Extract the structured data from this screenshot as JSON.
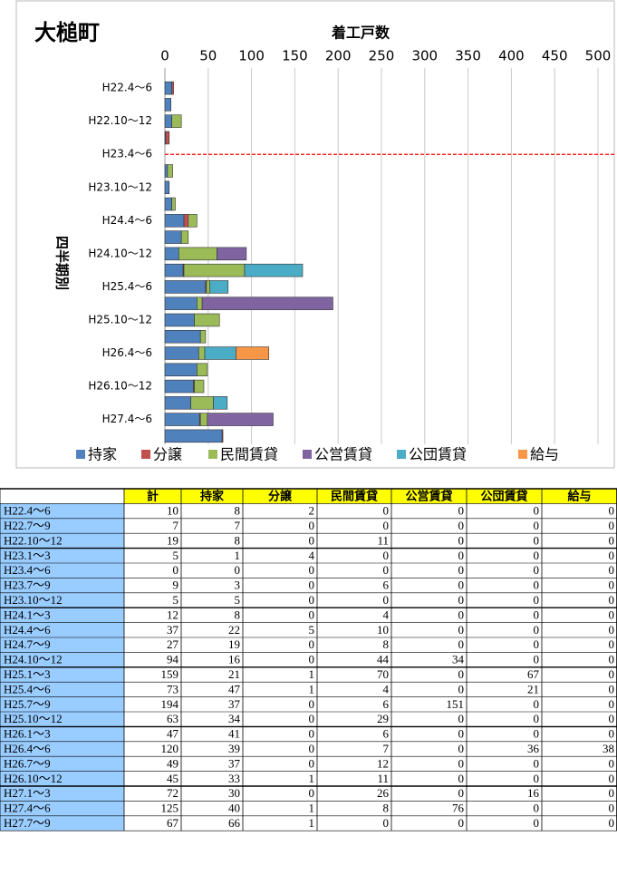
{
  "chart_data": {
    "type": "hbar-stacked",
    "title": "大槌町",
    "xlabel": "着工戸数",
    "ylabel": "四半期別",
    "categories": [
      "H22.4～6",
      null,
      "H22.10～12",
      null,
      "H23.4～6",
      null,
      "H23.10～12",
      null,
      "H24.4～6",
      null,
      "H24.10～12",
      null,
      "H25.4～6",
      null,
      "H25.10～12",
      null,
      "H26.4～6",
      null,
      "H26.10～12",
      null,
      "H27.4～6",
      null
    ],
    "series": [
      {
        "name": "持家",
        "color": "#4f81bd",
        "values": [
          8,
          7,
          8,
          1,
          0,
          3,
          5,
          8,
          22,
          19,
          16,
          21,
          47,
          37,
          34,
          41,
          39,
          37,
          33,
          30,
          40,
          66
        ]
      },
      {
        "name": "分譲",
        "color": "#c0504d",
        "values": [
          2,
          0,
          0,
          4,
          0,
          0,
          0,
          0,
          5,
          0,
          0,
          1,
          1,
          0,
          0,
          0,
          0,
          0,
          1,
          0,
          1,
          1
        ]
      },
      {
        "name": "民間賃貸",
        "color": "#9bbb59",
        "values": [
          0,
          0,
          11,
          0,
          0,
          6,
          0,
          4,
          10,
          8,
          44,
          70,
          4,
          6,
          29,
          6,
          7,
          12,
          11,
          26,
          8,
          0
        ]
      },
      {
        "name": "公営賃貸",
        "color": "#8064a2",
        "values": [
          0,
          0,
          0,
          0,
          0,
          0,
          0,
          0,
          0,
          0,
          34,
          0,
          0,
          151,
          0,
          0,
          0,
          0,
          0,
          0,
          76,
          0
        ]
      },
      {
        "name": "公団賃貸",
        "color": "#4bacc6",
        "values": [
          0,
          0,
          0,
          0,
          0,
          0,
          0,
          0,
          0,
          0,
          0,
          67,
          21,
          0,
          0,
          0,
          36,
          0,
          0,
          16,
          0,
          0
        ]
      },
      {
        "name": "給与",
        "color": "#f79646",
        "values": [
          0,
          0,
          0,
          0,
          0,
          0,
          0,
          0,
          0,
          0,
          0,
          0,
          0,
          0,
          0,
          0,
          38,
          0,
          0,
          0,
          0,
          0
        ]
      }
    ],
    "xlim": [
      0,
      500
    ],
    "xticks": [
      0,
      50,
      100,
      150,
      200,
      250,
      300,
      350,
      400,
      450,
      500
    ],
    "grid": true,
    "reference_line": {
      "category": 4,
      "color": "#ff0000"
    },
    "legend": "bottom"
  },
  "table": {
    "header": [
      "計",
      "持家",
      "分譲",
      "民間賃貸",
      "公営賃貸",
      "公団賃貸",
      "給与"
    ],
    "rows": [
      [
        "H22.4～6",
        10,
        8,
        2,
        0,
        0,
        0,
        0
      ],
      [
        "H22.7～9",
        7,
        7,
        0,
        0,
        0,
        0,
        0
      ],
      [
        "H22.10～12",
        19,
        8,
        0,
        11,
        0,
        0,
        0
      ],
      [
        "H23.1～3",
        5,
        1,
        4,
        0,
        0,
        0,
        0
      ],
      [
        "H23.4～6",
        0,
        0,
        0,
        0,
        0,
        0,
        0
      ],
      [
        "H23.7～9",
        9,
        3,
        0,
        6,
        0,
        0,
        0
      ],
      [
        "H23.10～12",
        5,
        5,
        0,
        0,
        0,
        0,
        0
      ],
      [
        "H24.1～3",
        12,
        8,
        0,
        4,
        0,
        0,
        0
      ],
      [
        "H24.4～6",
        37,
        22,
        5,
        10,
        0,
        0,
        0
      ],
      [
        "H24.7～9",
        27,
        19,
        0,
        8,
        0,
        0,
        0
      ],
      [
        "H24.10～12",
        94,
        16,
        0,
        44,
        34,
        0,
        0
      ],
      [
        "H25.1～3",
        159,
        21,
        1,
        70,
        0,
        67,
        0
      ],
      [
        "H25.4～6",
        73,
        47,
        1,
        4,
        0,
        21,
        0
      ],
      [
        "H25.7～9",
        194,
        37,
        0,
        6,
        151,
        0,
        0
      ],
      [
        "H25.10～12",
        63,
        34,
        0,
        29,
        0,
        0,
        0
      ],
      [
        "H26.1～3",
        47,
        41,
        0,
        6,
        0,
        0,
        0
      ],
      [
        "H26.4～6",
        120,
        39,
        0,
        7,
        0,
        36,
        38
      ],
      [
        "H26.7～9",
        49,
        37,
        0,
        12,
        0,
        0,
        0
      ],
      [
        "H26.10～12",
        45,
        33,
        1,
        11,
        0,
        0,
        0
      ],
      [
        "H27.1～3",
        72,
        30,
        0,
        26,
        0,
        16,
        0
      ],
      [
        "H27.4～6",
        125,
        40,
        1,
        8,
        76,
        0,
        0
      ],
      [
        "H27.7～9",
        67,
        66,
        1,
        0,
        0,
        0,
        0
      ]
    ]
  }
}
